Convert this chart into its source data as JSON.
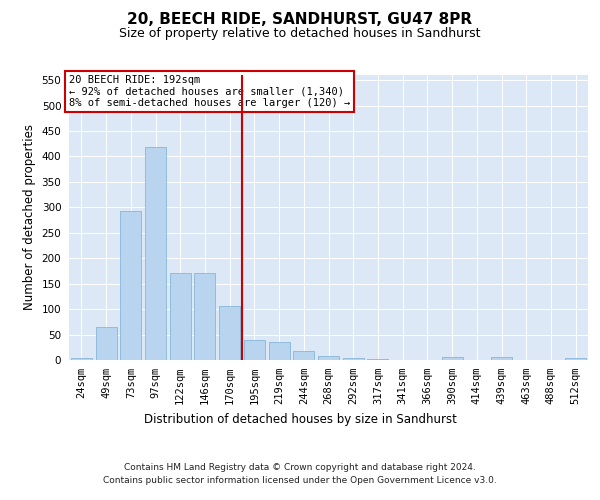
{
  "title": "20, BEECH RIDE, SANDHURST, GU47 8PR",
  "subtitle": "Size of property relative to detached houses in Sandhurst",
  "xlabel": "Distribution of detached houses by size in Sandhurst",
  "ylabel": "Number of detached properties",
  "categories": [
    "24sqm",
    "49sqm",
    "73sqm",
    "97sqm",
    "122sqm",
    "146sqm",
    "170sqm",
    "195sqm",
    "219sqm",
    "244sqm",
    "268sqm",
    "292sqm",
    "317sqm",
    "341sqm",
    "366sqm",
    "390sqm",
    "414sqm",
    "439sqm",
    "463sqm",
    "488sqm",
    "512sqm"
  ],
  "values": [
    3,
    65,
    293,
    418,
    170,
    170,
    107,
    40,
    35,
    18,
    7,
    4,
    1,
    0,
    0,
    5,
    0,
    5,
    0,
    0,
    3
  ],
  "bar_color": "#b8d4ee",
  "bar_edge_color": "#7aaed4",
  "vline_color": "#cc0000",
  "vline_x": 6.5,
  "annotation_text": "20 BEECH RIDE: 192sqm\n← 92% of detached houses are smaller (1,340)\n8% of semi-detached houses are larger (120) →",
  "annotation_box_facecolor": "#ffffff",
  "annotation_box_edgecolor": "#cc0000",
  "ylim_max": 560,
  "yticks": [
    0,
    50,
    100,
    150,
    200,
    250,
    300,
    350,
    400,
    450,
    500,
    550
  ],
  "bg_color": "#dce8f5",
  "footer_line1": "Contains HM Land Registry data © Crown copyright and database right 2024.",
  "footer_line2": "Contains public sector information licensed under the Open Government Licence v3.0."
}
